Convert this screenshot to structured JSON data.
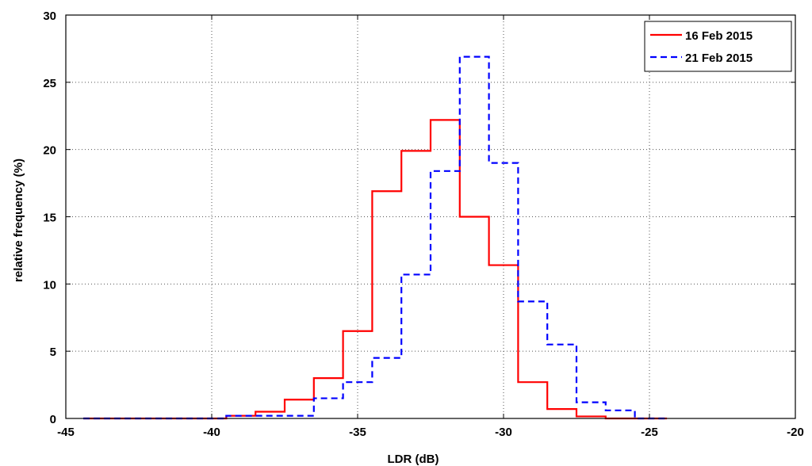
{
  "chart_data": {
    "type": "line",
    "title": "",
    "xlabel": "LDR  (dB)",
    "ylabel": "relative frequency (%)",
    "xlim": [
      -45,
      -20
    ],
    "ylim": [
      0,
      30
    ],
    "x_ticks": [
      -45,
      -40,
      -35,
      -30,
      -25,
      -20
    ],
    "y_ticks": [
      0,
      5,
      10,
      15,
      20,
      25,
      30
    ],
    "x_tick_labels": [
      "-45",
      "-40",
      "-35",
      "-30",
      "-25",
      "-20"
    ],
    "y_tick_labels": [
      "0",
      "5",
      "10",
      "15",
      "20",
      "25",
      "30"
    ],
    "grid": true,
    "legend_position": "top-right",
    "series": [
      {
        "name": "16 Feb 2015",
        "color": "#ff0000",
        "style": "solid",
        "x": [
          -44.4,
          -39.5,
          -39.5,
          -38.5,
          -38.5,
          -37.5,
          -37.5,
          -36.5,
          -36.5,
          -35.5,
          -35.5,
          -34.5,
          -34.5,
          -33.5,
          -33.5,
          -32.5,
          -32.5,
          -31.5,
          -31.5,
          -30.5,
          -30.5,
          -29.5,
          -29.5,
          -28.5,
          -28.5,
          -27.5,
          -27.5,
          -26.5,
          -26.5,
          -24.4
        ],
        "y": [
          0,
          0,
          0.2,
          0.2,
          0.5,
          0.5,
          1.4,
          1.4,
          3.0,
          3.0,
          6.5,
          6.5,
          16.9,
          16.9,
          19.9,
          19.9,
          22.2,
          22.2,
          15.0,
          15.0,
          11.4,
          11.4,
          2.7,
          2.7,
          0.7,
          0.7,
          0.15,
          0.15,
          0,
          0
        ]
      },
      {
        "name": "21 Feb 2015",
        "color": "#0000ff",
        "style": "dashed",
        "x": [
          -44.4,
          -39.5,
          -39.5,
          -36.5,
          -36.5,
          -35.5,
          -35.5,
          -34.5,
          -34.5,
          -33.5,
          -33.5,
          -32.5,
          -32.5,
          -31.5,
          -31.5,
          -30.5,
          -30.5,
          -29.5,
          -29.5,
          -28.5,
          -28.5,
          -27.5,
          -27.5,
          -26.5,
          -26.5,
          -25.5,
          -25.5,
          -24.4
        ],
        "y": [
          0,
          0,
          0.2,
          0.2,
          1.5,
          1.5,
          2.7,
          2.7,
          4.5,
          4.5,
          10.7,
          10.7,
          18.4,
          18.4,
          26.9,
          26.9,
          19.0,
          19.0,
          8.7,
          8.7,
          5.5,
          5.5,
          1.2,
          1.2,
          0.6,
          0.6,
          0,
          0
        ]
      }
    ]
  }
}
